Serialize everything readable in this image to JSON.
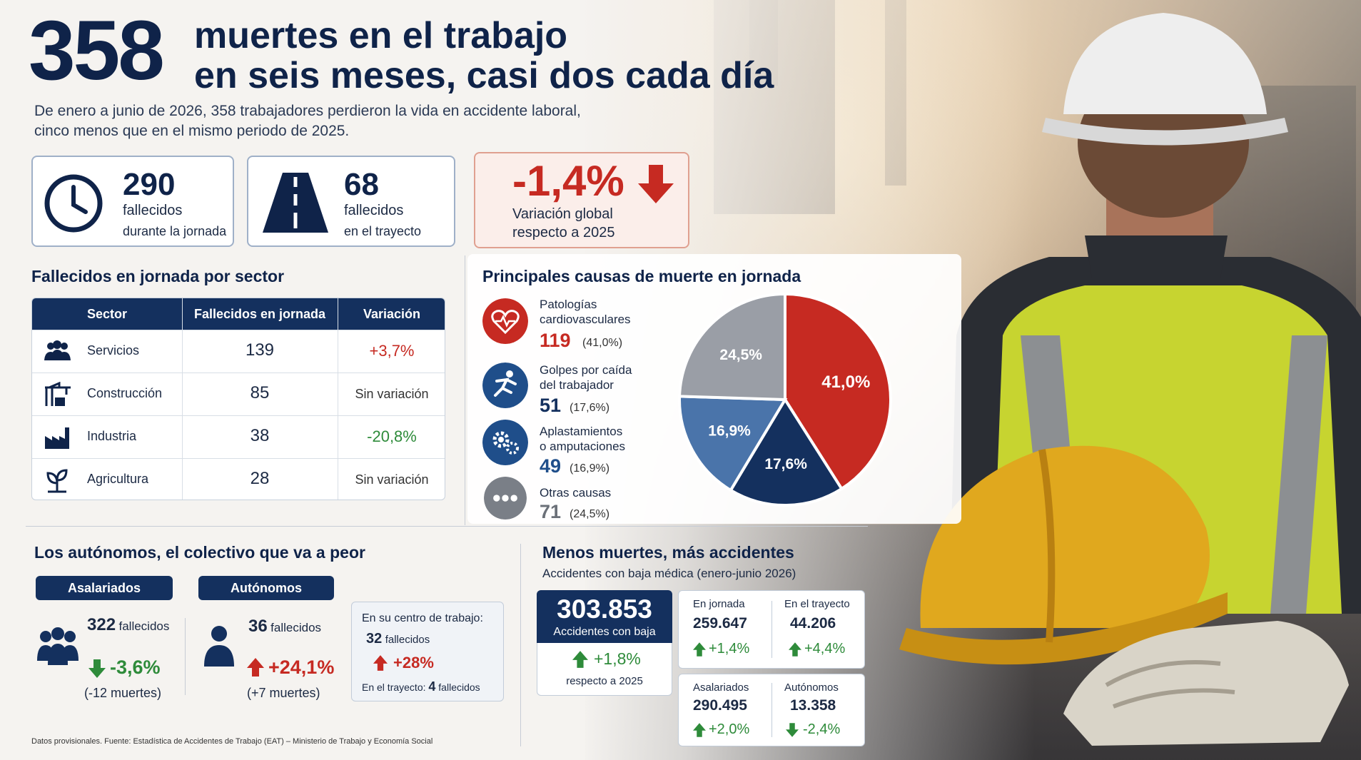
{
  "header": {
    "big_number": "358",
    "headline_1": "muertes en el trabajo",
    "headline_2": "en seis meses, casi dos cada día",
    "subhead_1": "De enero a junio de 2026, 358 trabajadores perdieron la vida en accidente laboral,",
    "subhead_2": "cinco menos que en el mismo periodo de 2025."
  },
  "stats": [
    {
      "value": "290",
      "label_1": "fallecidos",
      "label_2": "durante la jornada",
      "icon": "clock-icon"
    },
    {
      "value": "68",
      "label_1": "fallecidos",
      "label_2": "en el trayecto",
      "icon": "road-icon"
    },
    {
      "value": "-1,4%",
      "label_1": "Variación global",
      "label_2": "respecto a 2025",
      "icon": "arrow-down-icon"
    }
  ],
  "sector_table": {
    "title": "Fallecidos en jornada por sector",
    "headers": [
      "Sector",
      "Fallecidos en jornada",
      "Variación"
    ],
    "rows": [
      {
        "sector": "Servicios",
        "deaths": "139",
        "variation": "+3,7%",
        "icon": "people-icon",
        "color": "#c62a22"
      },
      {
        "sector": "Construcción",
        "deaths": "85",
        "variation": "Sin variación",
        "icon": "crane-icon",
        "color": "#333333"
      },
      {
        "sector": "Industria",
        "deaths": "38",
        "variation": "-20,8%",
        "icon": "factory-icon",
        "color": "#2e8b3a"
      },
      {
        "sector": "Agricultura",
        "deaths": "28",
        "variation": "Sin variación",
        "icon": "plant-icon",
        "color": "#333333"
      }
    ]
  },
  "causes": {
    "title": "Principales causas de muerte en jornada",
    "items": [
      {
        "label_1": "Patologías",
        "label_2": "cardiovasculares",
        "value": "119",
        "pct": "(41,0%)",
        "icon": "heart-icon",
        "color": "#c62a22"
      },
      {
        "label_1": "Golpes por caída",
        "label_2": "del trabajador",
        "value": "51",
        "pct": "(17,6%)",
        "icon": "falling-person-icon",
        "color": "#14305e"
      },
      {
        "label_1": "Aplastamientos",
        "label_2": "o amputaciones",
        "value": "49",
        "pct": "(16,9%)",
        "icon": "gears-icon",
        "color": "#1f4e8a"
      },
      {
        "label_1": "Otras causas",
        "label_2": "",
        "value": "71",
        "pct": "(24,5%)",
        "icon": "dots-icon",
        "color": "#7a7f87"
      }
    ]
  },
  "chart_data": {
    "type": "pie",
    "categories": [
      "Patologías cardiovasculares",
      "Golpes por caída del trabajador",
      "Aplastamientos o amputaciones",
      "Otras causas"
    ],
    "values": [
      41.0,
      17.6,
      16.9,
      24.5
    ],
    "labels": [
      "41,0%",
      "17,6%",
      "16,9%",
      "24,5%"
    ],
    "colors": [
      "#c62a22",
      "#14305e",
      "#4a74aa",
      "#9a9ea6"
    ]
  },
  "autonomos": {
    "title": "Los autónomos, el colectivo que va a peor",
    "asalariados": {
      "pill": "Asalariados",
      "value": "322",
      "unit": "fallecidos",
      "change": "-3,6%",
      "note": "(-12 muertes)"
    },
    "autonomos": {
      "pill": "Autónomos",
      "value": "36",
      "unit": "fallecidos",
      "change": "+24,1%",
      "note": "(+7 muertes)"
    },
    "box": {
      "line_1": "En su centro de trabajo:",
      "value_1": "32",
      "unit_1": "fallecidos",
      "change": "+28%",
      "line_2": "En el trayecto:",
      "value_2": "4",
      "unit_2": "fallecidos"
    }
  },
  "accidentes": {
    "title": "Menos muertes, más accidentes",
    "subtitle": "Accidentes con baja médica (enero-junio 2026)",
    "total": "303.853",
    "total_label": "Accidentes con baja",
    "total_change": "+1,8%",
    "total_note": "respecto a 2025",
    "jornada_label": "En jornada",
    "jornada_value": "259.647",
    "jornada_change": "+1,4%",
    "trayecto_label": "En el trayecto",
    "trayecto_value": "44.206",
    "trayecto_change": "+4,4%",
    "asal_label": "Asalariados",
    "asal_value": "290.495",
    "asal_change": "+2,0%",
    "auto_label": "Autónomos",
    "auto_value": "13.358",
    "auto_change": "-2,4%"
  },
  "footer": "Datos provisionales. Fuente: Estadística de Accidentes de Trabajo (EAT) – Ministerio de Trabajo y Economía Social"
}
